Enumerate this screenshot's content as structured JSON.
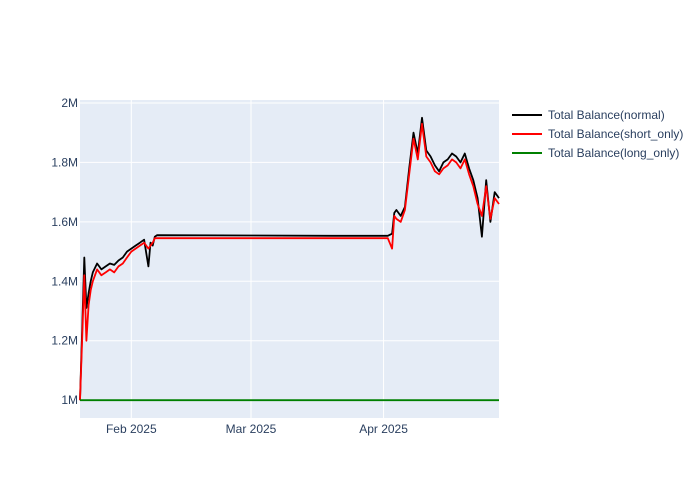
{
  "chart_data": {
    "type": "line",
    "title": "",
    "xlabel": "",
    "ylabel": "",
    "x_ticks": [
      "Feb 2025",
      "Mar 2025",
      "Apr 2025"
    ],
    "y_ticks": [
      "1M",
      "1.2M",
      "1.4M",
      "1.6M",
      "1.8M",
      "2M"
    ],
    "y_tick_values": [
      1000000,
      1200000,
      1400000,
      1600000,
      1800000,
      2000000
    ],
    "xlim": [
      "2025-01-20",
      "2025-04-28"
    ],
    "ylim": [
      940000,
      2010000
    ],
    "grid": true,
    "legend_position": "top-right",
    "plot_background": "#e5ecf6",
    "series": [
      {
        "name": "Total Balance(normal)",
        "color": "#000000",
        "x": [
          "2025-01-20",
          "2025-01-20T12:00",
          "2025-01-21",
          "2025-01-21T12:00",
          "2025-01-22",
          "2025-01-22T12:00",
          "2025-01-23",
          "2025-01-24",
          "2025-01-25",
          "2025-01-26",
          "2025-01-27",
          "2025-01-28",
          "2025-01-29",
          "2025-01-30",
          "2025-01-31",
          "2025-02-01",
          "2025-02-02",
          "2025-02-03",
          "2025-02-04",
          "2025-02-05",
          "2025-02-05T12:00",
          "2025-02-06",
          "2025-02-06T12:00",
          "2025-02-07",
          "2025-03-01",
          "2025-03-20",
          "2025-04-02",
          "2025-04-03",
          "2025-04-03T12:00",
          "2025-04-04",
          "2025-04-05",
          "2025-04-06",
          "2025-04-07",
          "2025-04-08",
          "2025-04-09",
          "2025-04-10",
          "2025-04-11",
          "2025-04-12",
          "2025-04-13",
          "2025-04-14",
          "2025-04-15",
          "2025-04-16",
          "2025-04-17",
          "2025-04-18",
          "2025-04-19",
          "2025-04-20",
          "2025-04-21",
          "2025-04-22",
          "2025-04-23",
          "2025-04-24",
          "2025-04-25",
          "2025-04-26",
          "2025-04-27",
          "2025-04-28"
        ],
        "values": [
          1000000,
          1230000,
          1480000,
          1310000,
          1360000,
          1400000,
          1430000,
          1460000,
          1440000,
          1450000,
          1460000,
          1455000,
          1470000,
          1480000,
          1500000,
          1510000,
          1520000,
          1530000,
          1540000,
          1450000,
          1530000,
          1520000,
          1550000,
          1555000,
          1554000,
          1553000,
          1553000,
          1560000,
          1630000,
          1640000,
          1620000,
          1650000,
          1780000,
          1900000,
          1830000,
          1950000,
          1840000,
          1820000,
          1790000,
          1770000,
          1800000,
          1810000,
          1830000,
          1820000,
          1800000,
          1830000,
          1780000,
          1740000,
          1680000,
          1550000,
          1740000,
          1600000,
          1700000,
          1680000
        ]
      },
      {
        "name": "Total Balance(short_only)",
        "color": "#ff0000",
        "x": [
          "2025-01-20",
          "2025-01-20T12:00",
          "2025-01-21",
          "2025-01-21T12:00",
          "2025-01-22",
          "2025-01-22T12:00",
          "2025-01-23",
          "2025-01-24",
          "2025-01-25",
          "2025-01-26",
          "2025-01-27",
          "2025-01-28",
          "2025-01-29",
          "2025-01-30",
          "2025-01-31",
          "2025-02-01",
          "2025-02-02",
          "2025-02-03",
          "2025-02-04",
          "2025-02-05",
          "2025-02-05T12:00",
          "2025-02-06",
          "2025-02-06T12:00",
          "2025-02-07",
          "2025-03-01",
          "2025-03-20",
          "2025-04-02",
          "2025-04-03",
          "2025-04-03T12:00",
          "2025-04-04",
          "2025-04-05",
          "2025-04-06",
          "2025-04-07",
          "2025-04-08",
          "2025-04-09",
          "2025-04-10",
          "2025-04-11",
          "2025-04-12",
          "2025-04-13",
          "2025-04-14",
          "2025-04-15",
          "2025-04-16",
          "2025-04-17",
          "2025-04-18",
          "2025-04-19",
          "2025-04-20",
          "2025-04-21",
          "2025-04-22",
          "2025-04-23",
          "2025-04-24",
          "2025-04-25",
          "2025-04-26",
          "2025-04-27",
          "2025-04-28"
        ],
        "values": [
          1000000,
          1200000,
          1420000,
          1200000,
          1320000,
          1370000,
          1400000,
          1440000,
          1420000,
          1430000,
          1440000,
          1430000,
          1450000,
          1460000,
          1480000,
          1500000,
          1510000,
          1520000,
          1530000,
          1510000,
          1520000,
          1530000,
          1545000,
          1545000,
          1545000,
          1545000,
          1545000,
          1510000,
          1620000,
          1610000,
          1600000,
          1640000,
          1760000,
          1880000,
          1810000,
          1930000,
          1820000,
          1800000,
          1770000,
          1760000,
          1780000,
          1790000,
          1810000,
          1800000,
          1780000,
          1810000,
          1760000,
          1720000,
          1660000,
          1620000,
          1720000,
          1610000,
          1680000,
          1660000
        ]
      },
      {
        "name": "Total Balance(long_only)",
        "color": "#008000",
        "x": [
          "2025-01-20",
          "2025-04-28"
        ],
        "values": [
          1000000,
          1000000
        ]
      }
    ]
  }
}
